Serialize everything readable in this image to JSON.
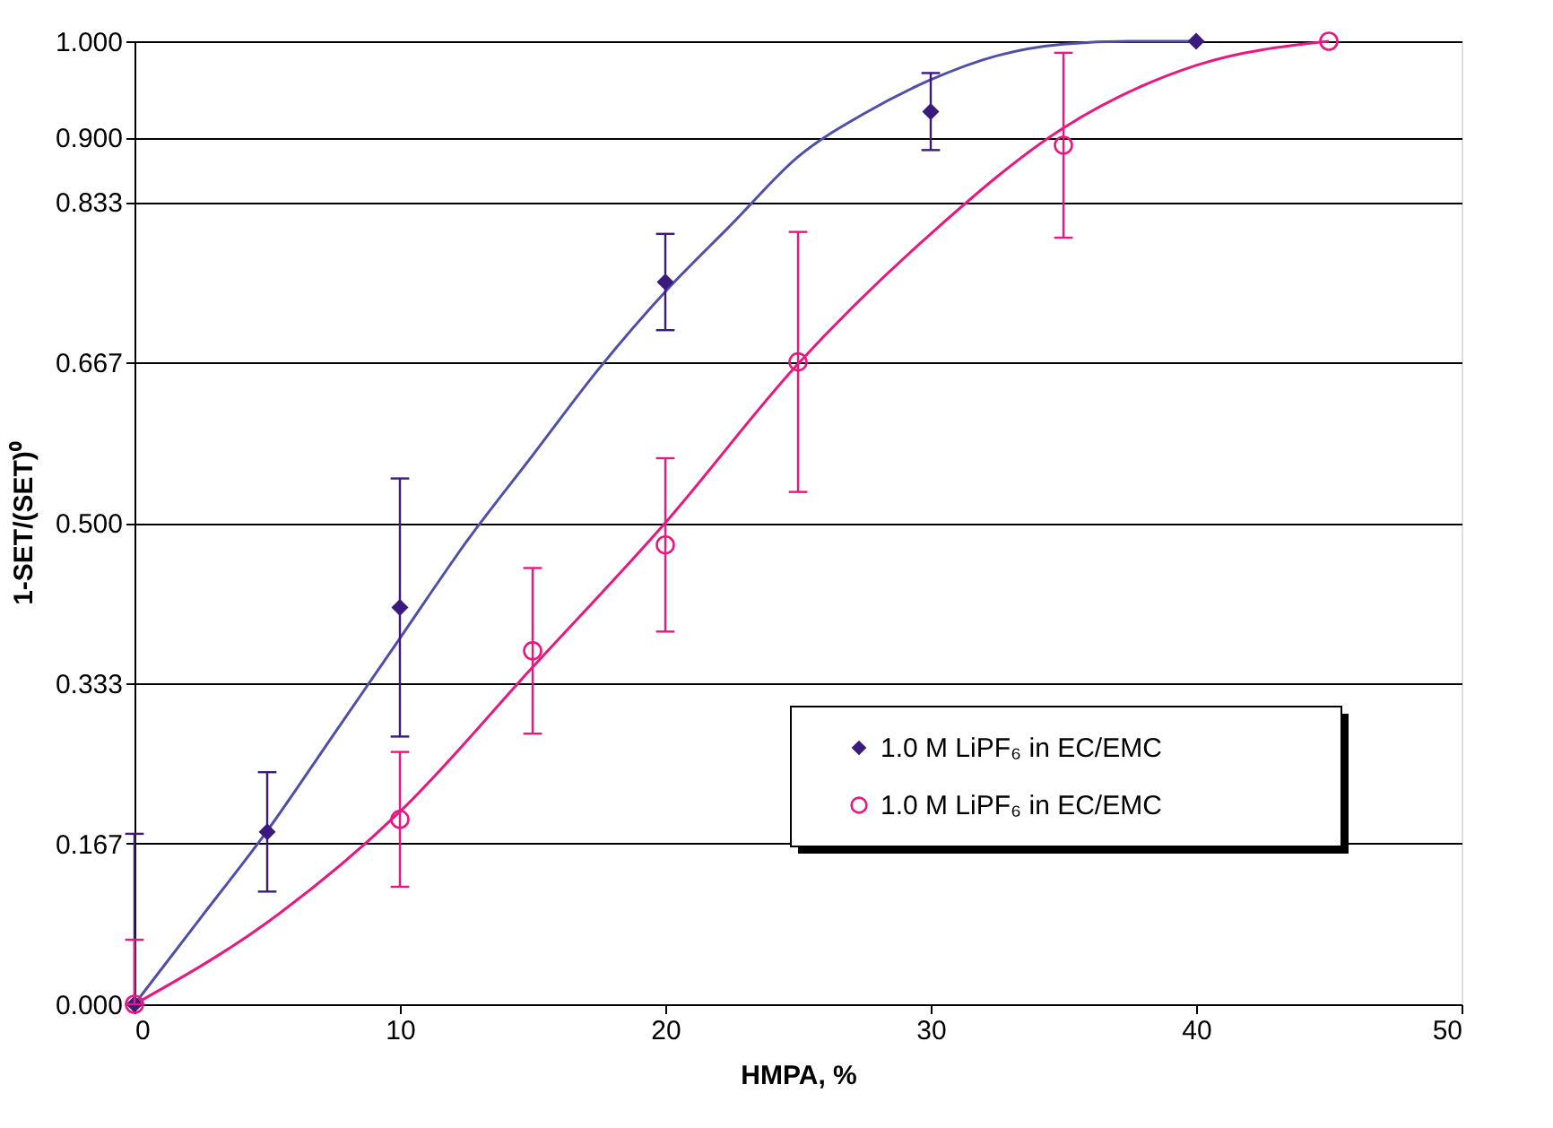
{
  "chart_data": {
    "type": "scatter",
    "xlabel": "HMPA, %",
    "ylabel": "1-SET/(SET)⁰",
    "xlim": [
      0,
      50
    ],
    "xticks": [
      0,
      10,
      20,
      30,
      40,
      50
    ],
    "ylim": [
      0,
      1
    ],
    "yticks": [
      {
        "value": 0,
        "label": "0.000"
      },
      {
        "value": 0.1667,
        "label": "0.167"
      },
      {
        "value": 0.3333,
        "label": "0.333"
      },
      {
        "value": 0.5,
        "label": "0.500"
      },
      {
        "value": 0.6667,
        "label": "0.667"
      },
      {
        "value": 0.8333,
        "label": "0.833"
      },
      {
        "value": 0.9,
        "label": "0.900"
      },
      {
        "value": 1,
        "label": "1.000"
      }
    ],
    "grid": "y",
    "legend": "bottom right",
    "series": [
      {
        "type": "line",
        "color": "#4f4fa8",
        "marker": "none",
        "x": [
          0,
          2.5,
          5,
          7.5,
          10,
          12.5,
          15,
          17.5,
          20,
          22.5,
          25,
          27.5,
          30,
          32.5,
          35,
          37.5,
          40
        ],
        "values": [
          0,
          0.09,
          0.18,
          0.28,
          0.38,
          0.48,
          0.57,
          0.66,
          0.74,
          0.81,
          0.88,
          0.925,
          0.96,
          0.985,
          0.997,
          1.0,
          1.0
        ]
      },
      {
        "type": "line",
        "color": "#e8197e",
        "marker": "none",
        "x": [
          0,
          5,
          10,
          15,
          20,
          25,
          30,
          35,
          40,
          45
        ],
        "values": [
          0,
          0.085,
          0.2,
          0.35,
          0.5,
          0.665,
          0.8,
          0.91,
          0.975,
          1.0
        ]
      },
      {
        "name": "1.0 M LiPF₆ in EC/EMC",
        "color": "#3b1a7e",
        "marker": "diamond",
        "x": [
          0,
          5,
          10,
          20,
          30,
          40
        ],
        "values": [
          0,
          0.179,
          0.412,
          0.75,
          0.927,
          1.0
        ],
        "errors": [
          [
            0,
            0.177
          ],
          0.062,
          0.134,
          0.05,
          0.04,
          null
        ]
      },
      {
        "name": "1.0 M LiPF₆ in EC/EMC",
        "color": "#e8197e",
        "marker": "circle",
        "x": [
          0,
          10,
          15,
          20,
          25,
          35,
          45
        ],
        "values": [
          0,
          0.192,
          0.367,
          0.477,
          0.667,
          0.892,
          1.0
        ],
        "errors": [
          [
            0,
            0.067
          ],
          0.07,
          0.086,
          0.09,
          0.135,
          0.096,
          null
        ]
      }
    ]
  }
}
